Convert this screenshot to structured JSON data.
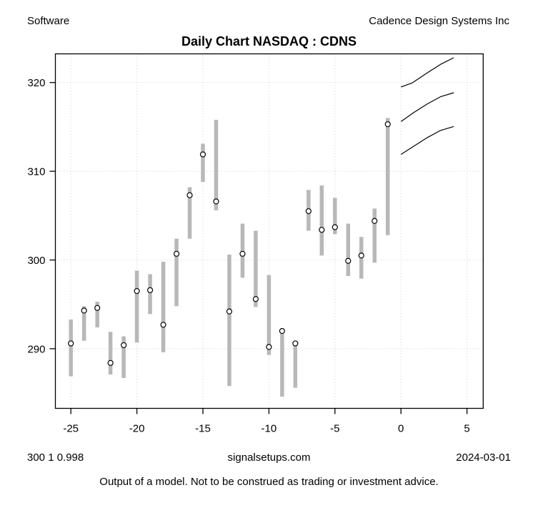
{
  "header": {
    "left": "Software",
    "right": "Cadence Design Systems Inc",
    "title": "Daily Chart NASDAQ : CDNS"
  },
  "footer": {
    "left": "300 1 0.998",
    "center": "signalsetups.com",
    "right": "2024-03-01",
    "disclaimer": "Output of a model.  Not to be construed as trading or investment advice."
  },
  "chart_data": {
    "type": "bar",
    "subtype": "daily-high-low-range-bars-with-close-markers-and-forecast-curves",
    "title": "Daily Chart NASDAQ : CDNS",
    "xlabel": "",
    "ylabel": "",
    "xlim": [
      -26.2,
      6.2
    ],
    "ylim": [
      283.2,
      323.3
    ],
    "x_ticks": [
      -25,
      -20,
      -15,
      -10,
      -5,
      0,
      5
    ],
    "y_ticks": [
      290,
      300,
      310,
      320
    ],
    "grid": "dotted",
    "legend": "none",
    "bars": [
      {
        "x": -25,
        "low": 286.9,
        "high": 293.3,
        "close": 290.6
      },
      {
        "x": -24,
        "low": 290.9,
        "high": 294.8,
        "close": 294.3
      },
      {
        "x": -23,
        "low": 292.4,
        "high": 295.3,
        "close": 294.6
      },
      {
        "x": -22,
        "low": 287.1,
        "high": 291.9,
        "close": 288.4
      },
      {
        "x": -21,
        "low": 286.7,
        "high": 291.4,
        "close": 290.4
      },
      {
        "x": -20,
        "low": 290.7,
        "high": 298.8,
        "close": 296.5
      },
      {
        "x": -19,
        "low": 293.9,
        "high": 298.4,
        "close": 296.6
      },
      {
        "x": -18,
        "low": 289.6,
        "high": 299.8,
        "close": 292.7
      },
      {
        "x": -17,
        "low": 294.8,
        "high": 302.4,
        "close": 300.7
      },
      {
        "x": -16,
        "low": 302.4,
        "high": 308.2,
        "close": 307.3
      },
      {
        "x": -15,
        "low": 308.8,
        "high": 313.1,
        "close": 311.9
      },
      {
        "x": -14,
        "low": 305.6,
        "high": 315.8,
        "close": 306.6
      },
      {
        "x": -13,
        "low": 285.8,
        "high": 300.6,
        "close": 294.2
      },
      {
        "x": -12,
        "low": 298.0,
        "high": 304.1,
        "close": 300.7
      },
      {
        "x": -11,
        "low": 294.7,
        "high": 303.3,
        "close": 295.6
      },
      {
        "x": -10,
        "low": 289.3,
        "high": 298.3,
        "close": 290.2
      },
      {
        "x": -9,
        "low": 284.6,
        "high": 292.1,
        "close": 292.0
      },
      {
        "x": -8,
        "low": 285.6,
        "high": 290.7,
        "close": 290.6
      },
      {
        "x": -7,
        "low": 303.3,
        "high": 307.9,
        "close": 305.5
      },
      {
        "x": -6,
        "low": 300.5,
        "high": 308.4,
        "close": 303.4
      },
      {
        "x": -5,
        "low": 302.9,
        "high": 307.0,
        "close": 303.7
      },
      {
        "x": -4,
        "low": 298.2,
        "high": 304.1,
        "close": 299.9
      },
      {
        "x": -3,
        "low": 297.9,
        "high": 302.6,
        "close": 300.5
      },
      {
        "x": -2,
        "low": 299.7,
        "high": 305.8,
        "close": 304.4
      },
      {
        "x": -1,
        "low": 302.8,
        "high": 316.0,
        "close": 315.3
      }
    ],
    "forecast_curves": [
      {
        "name": "upper",
        "points": [
          [
            0,
            319.5
          ],
          [
            0.85,
            319.95
          ],
          [
            2,
            321.1
          ],
          [
            3,
            322.05
          ],
          [
            4,
            322.8
          ]
        ]
      },
      {
        "name": "middle",
        "points": [
          [
            0,
            315.6
          ],
          [
            1,
            316.65
          ],
          [
            2,
            317.6
          ],
          [
            3,
            318.4
          ],
          [
            4,
            318.85
          ]
        ]
      },
      {
        "name": "lower",
        "points": [
          [
            0,
            311.9
          ],
          [
            1,
            312.85
          ],
          [
            2,
            313.8
          ],
          [
            3,
            314.6
          ],
          [
            4,
            315.05
          ]
        ]
      }
    ],
    "colors": {
      "bar": "#b8b8b8",
      "close_marker_fill": "#ffffff",
      "close_marker_stroke": "#000000",
      "grid": "#d6d6d6",
      "axis": "#000000",
      "forecast_line": "#000000",
      "background": "#ffffff"
    }
  }
}
